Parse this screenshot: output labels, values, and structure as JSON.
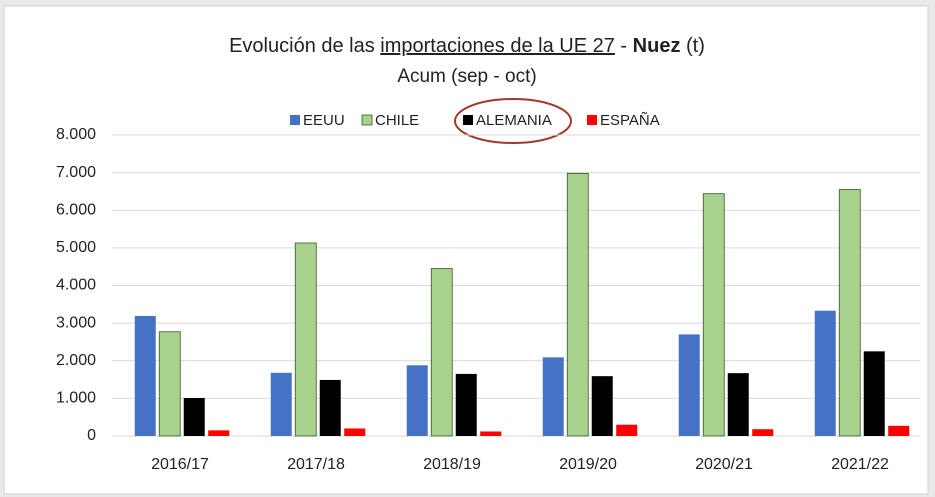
{
  "chart_data": {
    "type": "bar",
    "title": [
      "Evolución de las ",
      "importaciones de la UE 27",
      " - ",
      "Nuez",
      " (t)"
    ],
    "subtitle": "Acum (sep - oct)",
    "categories": [
      "2016/17",
      "2017/18",
      "2018/19",
      "2019/20",
      "2020/21",
      "2021/22"
    ],
    "series": [
      {
        "name": "EEUU",
        "color": "#4472c4",
        "values": [
          3190,
          1680,
          1880,
          2090,
          2700,
          3330
        ]
      },
      {
        "name": "CHILE",
        "color": "#a9d18e",
        "values": [
          2770,
          5130,
          4450,
          6980,
          6440,
          6550
        ]
      },
      {
        "name": "ALEMANIA",
        "color": "#000000",
        "values": [
          1010,
          1490,
          1650,
          1590,
          1670,
          2250
        ]
      },
      {
        "name": "ESPAÑA",
        "color": "#ff0000",
        "values": [
          150,
          200,
          120,
          300,
          180,
          270
        ]
      }
    ],
    "ylim": [
      0,
      8000
    ],
    "yticks": [
      0,
      {
        "value": 1000,
        "label": "1.000"
      },
      {
        "value": 2000,
        "label": "2.000"
      },
      {
        "value": 3000,
        "label": "3.000"
      },
      {
        "value": 4000,
        "label": "4.000"
      },
      {
        "value": 5000,
        "label": "5.000"
      },
      {
        "value": 6000,
        "label": "6.000"
      },
      {
        "value": 7000,
        "label": "7.000"
      },
      {
        "value": 8000,
        "label": "8.000"
      }
    ],
    "grid": true,
    "legend": "top"
  }
}
